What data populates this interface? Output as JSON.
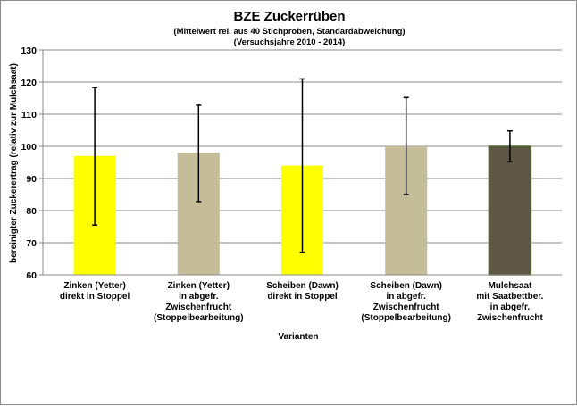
{
  "chart_data": {
    "type": "bar",
    "title": "BZE Zuckerrüben",
    "subtitle_lines": [
      "(Mittelwert  rel. aus 40 Stichproben, Standardabweichung)",
      "(Versuchsjahre  2010 - 2014)"
    ],
    "xlabel": "Varianten",
    "ylabel": "bereinigter Zuckerertrag  (relativ zur Mulchsaat)",
    "ylim": [
      60,
      130
    ],
    "yticks": [
      60,
      70,
      80,
      90,
      100,
      110,
      120,
      130
    ],
    "grid": true,
    "categories": [
      [
        "Zinken (Yetter)",
        "direkt in Stoppel"
      ],
      [
        "Zinken (Yetter)",
        "in abgefr.",
        "Zwischenfrucht",
        "(Stoppelbearbeitung)"
      ],
      [
        "Scheiben (Dawn)",
        "direkt in Stoppel"
      ],
      [
        "Scheiben (Dawn)",
        "in abgefr.",
        "Zwischenfrucht",
        "(Stoppelbearbeitung)"
      ],
      [
        "Mulchsaat",
        "mit Saatbettber.",
        "in abgefr.",
        "Zwischenfrucht"
      ]
    ],
    "values": [
      97,
      98,
      94,
      100,
      100
    ],
    "error_low": [
      75.5,
      82.8,
      67,
      85,
      95.2
    ],
    "error_high": [
      118.3,
      112.8,
      121,
      115.2,
      104.8
    ],
    "colors": [
      "#ffff00",
      "#c4bd97",
      "#ffff00",
      "#c4bd97",
      "#5e5746"
    ]
  }
}
